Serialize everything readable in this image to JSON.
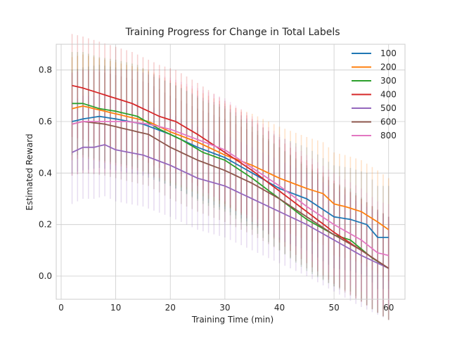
{
  "chart_data": {
    "type": "line",
    "title": "Training Progress for Change in Total Labels",
    "xlabel": "Training Time (min)",
    "ylabel": "Estimated Reward",
    "xlim": [
      -0.9,
      63
    ],
    "ylim": [
      -0.09,
      0.9
    ],
    "xticks": [
      0,
      10,
      20,
      30,
      40,
      50,
      60
    ],
    "yticks": [
      0.0,
      0.2,
      0.4,
      0.6,
      0.8
    ],
    "xtick_labels": [
      "0",
      "10",
      "20",
      "30",
      "40",
      "50",
      "60"
    ],
    "ytick_labels": [
      "0.0",
      "0.2",
      "0.4",
      "0.6",
      "0.8"
    ],
    "grid": true,
    "legend_position": "top-right",
    "error_bars": true,
    "x_range": [
      2,
      60
    ],
    "series": [
      {
        "name": "100",
        "color": "#1f77b4",
        "err": 0.2,
        "knots": [
          [
            2,
            0.6
          ],
          [
            4,
            0.61
          ],
          [
            7,
            0.62
          ],
          [
            10,
            0.61
          ],
          [
            15,
            0.59
          ],
          [
            20,
            0.55
          ],
          [
            25,
            0.5
          ],
          [
            30,
            0.46
          ],
          [
            35,
            0.4
          ],
          [
            40,
            0.34
          ],
          [
            45,
            0.3
          ],
          [
            50,
            0.23
          ],
          [
            53,
            0.22
          ],
          [
            56,
            0.2
          ],
          [
            58,
            0.15
          ],
          [
            60,
            0.15
          ]
        ]
      },
      {
        "name": "200",
        "color": "#ff7f0e",
        "err": 0.2,
        "knots": [
          [
            2,
            0.65
          ],
          [
            4,
            0.66
          ],
          [
            8,
            0.64
          ],
          [
            12,
            0.62
          ],
          [
            16,
            0.6
          ],
          [
            20,
            0.56
          ],
          [
            25,
            0.52
          ],
          [
            30,
            0.47
          ],
          [
            35,
            0.43
          ],
          [
            40,
            0.38
          ],
          [
            45,
            0.34
          ],
          [
            48,
            0.32
          ],
          [
            50,
            0.28
          ],
          [
            52,
            0.27
          ],
          [
            55,
            0.25
          ],
          [
            58,
            0.21
          ],
          [
            60,
            0.18
          ]
        ]
      },
      {
        "name": "300",
        "color": "#2ca02c",
        "err": 0.2,
        "knots": [
          [
            2,
            0.67
          ],
          [
            4,
            0.67
          ],
          [
            7,
            0.65
          ],
          [
            10,
            0.64
          ],
          [
            14,
            0.62
          ],
          [
            18,
            0.57
          ],
          [
            22,
            0.53
          ],
          [
            26,
            0.48
          ],
          [
            30,
            0.45
          ],
          [
            35,
            0.38
          ],
          [
            40,
            0.3
          ],
          [
            45,
            0.22
          ],
          [
            50,
            0.16
          ],
          [
            53,
            0.14
          ],
          [
            57,
            0.07
          ],
          [
            60,
            0.03
          ]
        ]
      },
      {
        "name": "400",
        "color": "#d62728",
        "err": 0.2,
        "knots": [
          [
            2,
            0.74
          ],
          [
            4,
            0.73
          ],
          [
            7,
            0.71
          ],
          [
            10,
            0.69
          ],
          [
            13,
            0.67
          ],
          [
            16,
            0.64
          ],
          [
            18,
            0.62
          ],
          [
            21,
            0.6
          ],
          [
            25,
            0.55
          ],
          [
            30,
            0.48
          ],
          [
            35,
            0.41
          ],
          [
            40,
            0.33
          ],
          [
            45,
            0.25
          ],
          [
            50,
            0.17
          ],
          [
            55,
            0.1
          ],
          [
            60,
            0.03
          ]
        ]
      },
      {
        "name": "500",
        "color": "#9467bd",
        "err": 0.2,
        "knots": [
          [
            2,
            0.48
          ],
          [
            4,
            0.5
          ],
          [
            6,
            0.5
          ],
          [
            8,
            0.51
          ],
          [
            10,
            0.49
          ],
          [
            15,
            0.47
          ],
          [
            20,
            0.43
          ],
          [
            25,
            0.38
          ],
          [
            30,
            0.35
          ],
          [
            35,
            0.3
          ],
          [
            40,
            0.25
          ],
          [
            45,
            0.2
          ],
          [
            50,
            0.14
          ],
          [
            55,
            0.08
          ],
          [
            60,
            0.03
          ]
        ]
      },
      {
        "name": "600",
        "color": "#8c564b",
        "err": 0.2,
        "knots": [
          [
            2,
            0.59
          ],
          [
            4,
            0.6
          ],
          [
            8,
            0.59
          ],
          [
            12,
            0.57
          ],
          [
            16,
            0.55
          ],
          [
            20,
            0.5
          ],
          [
            25,
            0.45
          ],
          [
            30,
            0.41
          ],
          [
            35,
            0.36
          ],
          [
            40,
            0.3
          ],
          [
            45,
            0.23
          ],
          [
            50,
            0.16
          ],
          [
            55,
            0.1
          ],
          [
            60,
            0.03
          ]
        ]
      },
      {
        "name": "800",
        "color": "#e377c2",
        "err": 0.2,
        "knots": [
          [
            2,
            0.59
          ],
          [
            4,
            0.6
          ],
          [
            8,
            0.6
          ],
          [
            12,
            0.6
          ],
          [
            16,
            0.59
          ],
          [
            20,
            0.57
          ],
          [
            25,
            0.53
          ],
          [
            30,
            0.49
          ],
          [
            35,
            0.42
          ],
          [
            40,
            0.35
          ],
          [
            45,
            0.27
          ],
          [
            50,
            0.2
          ],
          [
            55,
            0.14
          ],
          [
            58,
            0.09
          ],
          [
            60,
            0.08
          ]
        ]
      }
    ]
  }
}
